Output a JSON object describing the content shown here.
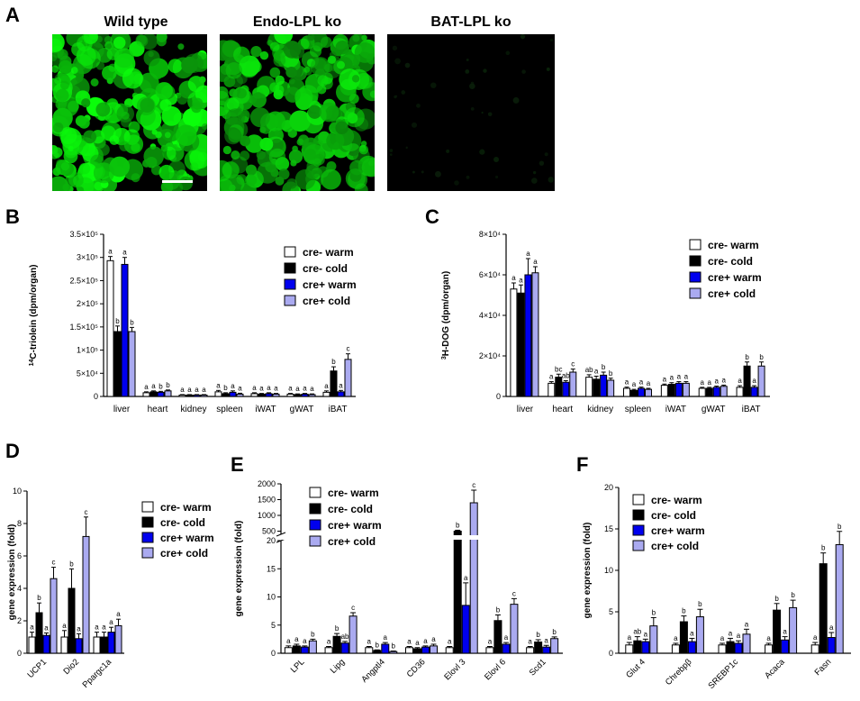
{
  "panel_labels": {
    "A": "A",
    "B": "B",
    "C": "C",
    "D": "D",
    "E": "E",
    "F": "F"
  },
  "images": [
    {
      "title": "Wild type",
      "intensity": 1.0
    },
    {
      "title": "Endo-LPL ko",
      "intensity": 0.85
    },
    {
      "title": "BAT-LPL ko",
      "intensity": 0.08
    }
  ],
  "colors": {
    "cre- warm": "#ffffff",
    "cre- cold": "#000000",
    "cre+ warm": "#0000ee",
    "cre+ cold": "#aaaaf0"
  },
  "chart_data": [
    {
      "id": "B",
      "type": "bar",
      "ylabel": "14C-triolein (dpm/organ)",
      "ylabel_sup": "14",
      "ylabel_rest": "C-triolein (dpm/organ)",
      "ylim": [
        0,
        350000
      ],
      "yticks": [
        "0",
        "5×10⁴",
        "1×10⁵",
        "1.5×10⁵",
        "2×10⁵",
        "2.5×10⁵",
        "3×10⁵",
        "3.5×10⁵"
      ],
      "ytick_values": [
        0,
        50000,
        100000,
        150000,
        200000,
        250000,
        300000,
        350000
      ],
      "categories": [
        "liver",
        "heart",
        "kidney",
        "spleen",
        "iWAT",
        "gWAT",
        "iBAT"
      ],
      "legend": "top-right",
      "series": [
        {
          "name": "cre- warm",
          "values": [
            293000,
            8000,
            3000,
            10000,
            6000,
            5000,
            9000
          ],
          "err": [
            9000,
            2000,
            1000,
            3000,
            2000,
            1500,
            3000
          ],
          "letters": [
            "a",
            "a",
            "a",
            "a",
            "a",
            "a",
            "a"
          ]
        },
        {
          "name": "cre- cold",
          "values": [
            140000,
            10000,
            3000,
            6000,
            5000,
            4000,
            55000
          ],
          "err": [
            12000,
            2000,
            1000,
            2000,
            1500,
            1500,
            9000
          ],
          "letters": [
            "b",
            "a",
            "a",
            "b",
            "a",
            "a",
            "b"
          ]
        },
        {
          "name": "cre+ warm",
          "values": [
            285000,
            9000,
            3000,
            9000,
            6000,
            5000,
            10000
          ],
          "err": [
            15000,
            2000,
            1000,
            3000,
            2000,
            1500,
            3000
          ],
          "letters": [
            "a",
            "b",
            "a",
            "a",
            "a",
            "a",
            "a"
          ]
        },
        {
          "name": "cre+ cold",
          "values": [
            140000,
            12000,
            3000,
            5000,
            5000,
            4000,
            80000
          ],
          "err": [
            9000,
            2000,
            1000,
            2000,
            1500,
            1500,
            12000
          ],
          "letters": [
            "b",
            "b",
            "a",
            "a",
            "a",
            "a",
            "c"
          ]
        }
      ]
    },
    {
      "id": "C",
      "type": "bar",
      "ylabel": "3H-DOG (dpm/organ)",
      "ylabel_sup": "3",
      "ylabel_rest": "H-DOG (dpm/organ)",
      "ylim": [
        0,
        80000
      ],
      "yticks": [
        "0",
        "2×10⁴",
        "4×10⁴",
        "6×10⁴",
        "8×10⁴"
      ],
      "ytick_values": [
        0,
        20000,
        40000,
        60000,
        80000
      ],
      "categories": [
        "liver",
        "heart",
        "kidney",
        "spleen",
        "iWAT",
        "gWAT",
        "iBAT"
      ],
      "legend": "top-right",
      "series": [
        {
          "name": "cre- warm",
          "values": [
            53000,
            6500,
            9500,
            4000,
            5500,
            4000,
            4500
          ],
          "err": [
            3000,
            800,
            1200,
            600,
            600,
            500,
            800
          ],
          "letters": [
            "a",
            "a",
            "ab",
            "a",
            "a",
            "a",
            "a"
          ]
        },
        {
          "name": "cre- cold",
          "values": [
            51000,
            9500,
            8500,
            3000,
            6000,
            4000,
            15000
          ],
          "err": [
            4000,
            1500,
            1500,
            500,
            800,
            500,
            2000
          ],
          "letters": [
            "a",
            "bc",
            "a",
            "a",
            "a",
            "a",
            "b"
          ]
        },
        {
          "name": "cre+ warm",
          "values": [
            60000,
            7000,
            10500,
            4000,
            6500,
            4500,
            4500
          ],
          "err": [
            8000,
            800,
            1500,
            600,
            800,
            600,
            800
          ],
          "letters": [
            "a",
            "ab",
            "b",
            "a",
            "a",
            "a",
            "a"
          ]
        },
        {
          "name": "cre+ cold",
          "values": [
            61000,
            12000,
            8000,
            3500,
            6500,
            5000,
            15000
          ],
          "err": [
            3000,
            1500,
            1000,
            500,
            800,
            600,
            2000
          ],
          "letters": [
            "a",
            "c",
            "b",
            "a",
            "a",
            "a",
            "b"
          ]
        }
      ]
    },
    {
      "id": "D",
      "type": "bar",
      "ylabel": "gene expression (fold)",
      "ylim": [
        0,
        10
      ],
      "yticks": [
        "0",
        "2",
        "4",
        "6",
        "8",
        "10"
      ],
      "ytick_values": [
        0,
        2,
        4,
        6,
        8,
        10
      ],
      "categories": [
        "UCP1",
        "Dio2",
        "Ppargc1a"
      ],
      "legend": "top-right",
      "series": [
        {
          "name": "cre- warm",
          "values": [
            1.0,
            1.0,
            1.0
          ],
          "err": [
            0.3,
            0.4,
            0.3
          ],
          "letters": [
            "a",
            "a",
            "a"
          ]
        },
        {
          "name": "cre- cold",
          "values": [
            2.5,
            4.0,
            1.0
          ],
          "err": [
            0.6,
            1.2,
            0.3
          ],
          "letters": [
            "b",
            "b",
            "a"
          ]
        },
        {
          "name": "cre+ warm",
          "values": [
            1.1,
            0.9,
            1.3
          ],
          "err": [
            0.15,
            0.3,
            0.3
          ],
          "letters": [
            "a",
            "a",
            "a"
          ]
        },
        {
          "name": "cre+ cold",
          "values": [
            4.6,
            7.2,
            1.7
          ],
          "err": [
            0.7,
            1.2,
            0.4
          ],
          "letters": [
            "c",
            "c",
            "a"
          ]
        }
      ]
    },
    {
      "id": "E",
      "type": "bar",
      "ylabel": "gene expression (fold)",
      "broken_axis": true,
      "lower_ylim": [
        0,
        20
      ],
      "lower_yticks": [
        "0",
        "5",
        "10",
        "15",
        "20"
      ],
      "lower_ytick_values": [
        0,
        5,
        10,
        15,
        20
      ],
      "upper_ylim": [
        400,
        2000
      ],
      "upper_yticks": [
        "500",
        "1000",
        "1500",
        "2000"
      ],
      "upper_ytick_values": [
        500,
        1000,
        1500,
        2000
      ],
      "categories": [
        "LPL",
        "Lipg",
        "Angptl4",
        "CD36",
        "Elovl 3",
        "Elovl 6",
        "Scd1"
      ],
      "legend": "top-left",
      "series": [
        {
          "name": "cre- warm",
          "values": [
            1.0,
            1.0,
            1.0,
            1.0,
            1.0,
            1.0,
            1.0
          ],
          "err": [
            0.3,
            0.2,
            0.2,
            0.2,
            0.2,
            0.2,
            0.2
          ],
          "letters": [
            "a",
            "a",
            "a",
            "a",
            "a",
            "a",
            "a"
          ]
        },
        {
          "name": "cre- cold",
          "values": [
            1.3,
            3.0,
            0.5,
            0.8,
            500,
            5.8,
            2.0
          ],
          "err": [
            0.3,
            0.5,
            0.1,
            0.2,
            30,
            1.0,
            0.4
          ],
          "letters": [
            "a",
            "b",
            "b",
            "a",
            "b",
            "b",
            "b"
          ]
        },
        {
          "name": "cre+ warm",
          "values": [
            1.1,
            1.8,
            1.6,
            1.1,
            8.5,
            1.6,
            1.1
          ],
          "err": [
            0.2,
            0.3,
            0.3,
            0.2,
            4.0,
            0.3,
            0.3
          ],
          "letters": [
            "a",
            "ab",
            "a",
            "a",
            "a",
            "a",
            "a"
          ]
        },
        {
          "name": "cre+ cold",
          "values": [
            2.2,
            6.6,
            0.3,
            1.3,
            1400,
            8.7,
            2.6
          ],
          "err": [
            0.3,
            0.6,
            0.1,
            0.3,
            400,
            1.0,
            0.3
          ],
          "letters": [
            "b",
            "c",
            "b",
            "a",
            "c",
            "c",
            "b"
          ]
        }
      ]
    },
    {
      "id": "F",
      "type": "bar",
      "ylabel": "gene expression (fold)",
      "ylim": [
        0,
        20
      ],
      "yticks": [
        "0",
        "5",
        "10",
        "15",
        "20"
      ],
      "ytick_values": [
        0,
        5,
        10,
        15,
        20
      ],
      "categories": [
        "Glut 4",
        "Chrebpβ",
        "SREBP1c",
        "Acaca",
        "Fasn"
      ],
      "legend": "top-left",
      "series": [
        {
          "name": "cre- warm",
          "values": [
            1.0,
            1.0,
            1.0,
            1.0,
            1.0
          ],
          "err": [
            0.3,
            0.2,
            0.2,
            0.2,
            0.3
          ],
          "letters": [
            "a",
            "a",
            "a",
            "a",
            "a"
          ]
        },
        {
          "name": "cre- cold",
          "values": [
            1.5,
            3.8,
            1.4,
            5.2,
            10.8
          ],
          "err": [
            0.5,
            0.7,
            0.4,
            0.8,
            1.3
          ],
          "letters": [
            "ab",
            "b",
            "a",
            "b",
            "b"
          ]
        },
        {
          "name": "cre+ warm",
          "values": [
            1.4,
            1.4,
            1.2,
            1.6,
            1.9
          ],
          "err": [
            0.3,
            0.4,
            0.3,
            0.4,
            0.6
          ],
          "letters": [
            "a",
            "a",
            "a",
            "a",
            "a"
          ]
        },
        {
          "name": "cre+ cold",
          "values": [
            3.3,
            4.4,
            2.3,
            5.5,
            13.1
          ],
          "err": [
            1.0,
            0.9,
            0.6,
            0.9,
            1.6
          ],
          "letters": [
            "b",
            "b",
            "a",
            "b",
            "b"
          ]
        }
      ]
    }
  ]
}
